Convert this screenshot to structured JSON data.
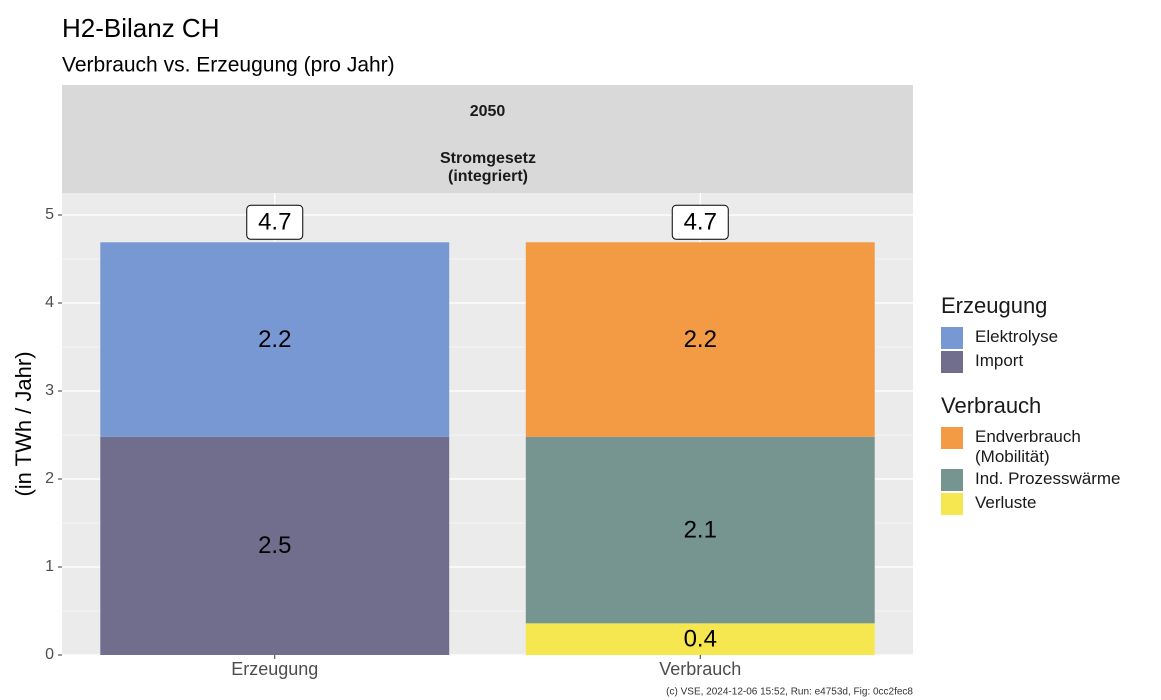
{
  "chart_data": {
    "type": "stacked_bar",
    "title": "H2-Bilanz CH",
    "subtitle": "Verbrauch vs. Erzeugung (pro Jahr)",
    "strip": [
      "2050",
      "Stromgesetz (integriert)"
    ],
    "y_label": "(in TWh / Jahr)",
    "caption": "(c) VSE, 2024-12-06 15:52, Run: e4753d, Fig: 0cc2fec8",
    "categories": [
      "Erzeugung",
      "Verbrauch"
    ],
    "totals": [
      4.69,
      4.69
    ],
    "total_labels": [
      "4.7",
      "4.7"
    ],
    "legend_groups": [
      {
        "title": "Erzeugung",
        "series": [
          {
            "name": "Elektrolyse",
            "color": "#7898d4",
            "values": [
              2.21,
              null
            ],
            "value_labels": [
              "2.2",
              null
            ]
          },
          {
            "name": "Import",
            "color": "#716d8c",
            "values": [
              2.48,
              null
            ],
            "value_labels": [
              "2.5",
              null
            ]
          }
        ]
      },
      {
        "title": "Verbrauch",
        "series": [
          {
            "name": "Endverbrauch (Mobilität)",
            "color": "#f39a45",
            "values": [
              null,
              2.21
            ],
            "value_labels": [
              null,
              "2.2"
            ]
          },
          {
            "name": "Ind. Prozesswärme",
            "color": "#769490",
            "values": [
              null,
              2.12
            ],
            "value_labels": [
              null,
              "2.1"
            ]
          },
          {
            "name": "Verluste",
            "color": "#f6e64f",
            "values": [
              null,
              0.36
            ],
            "value_labels": [
              null,
              "0.4"
            ]
          }
        ]
      }
    ],
    "ylim": [
      0,
      5.25
    ],
    "yticks": [
      0,
      1,
      2,
      3,
      4,
      5
    ],
    "grid": true
  }
}
